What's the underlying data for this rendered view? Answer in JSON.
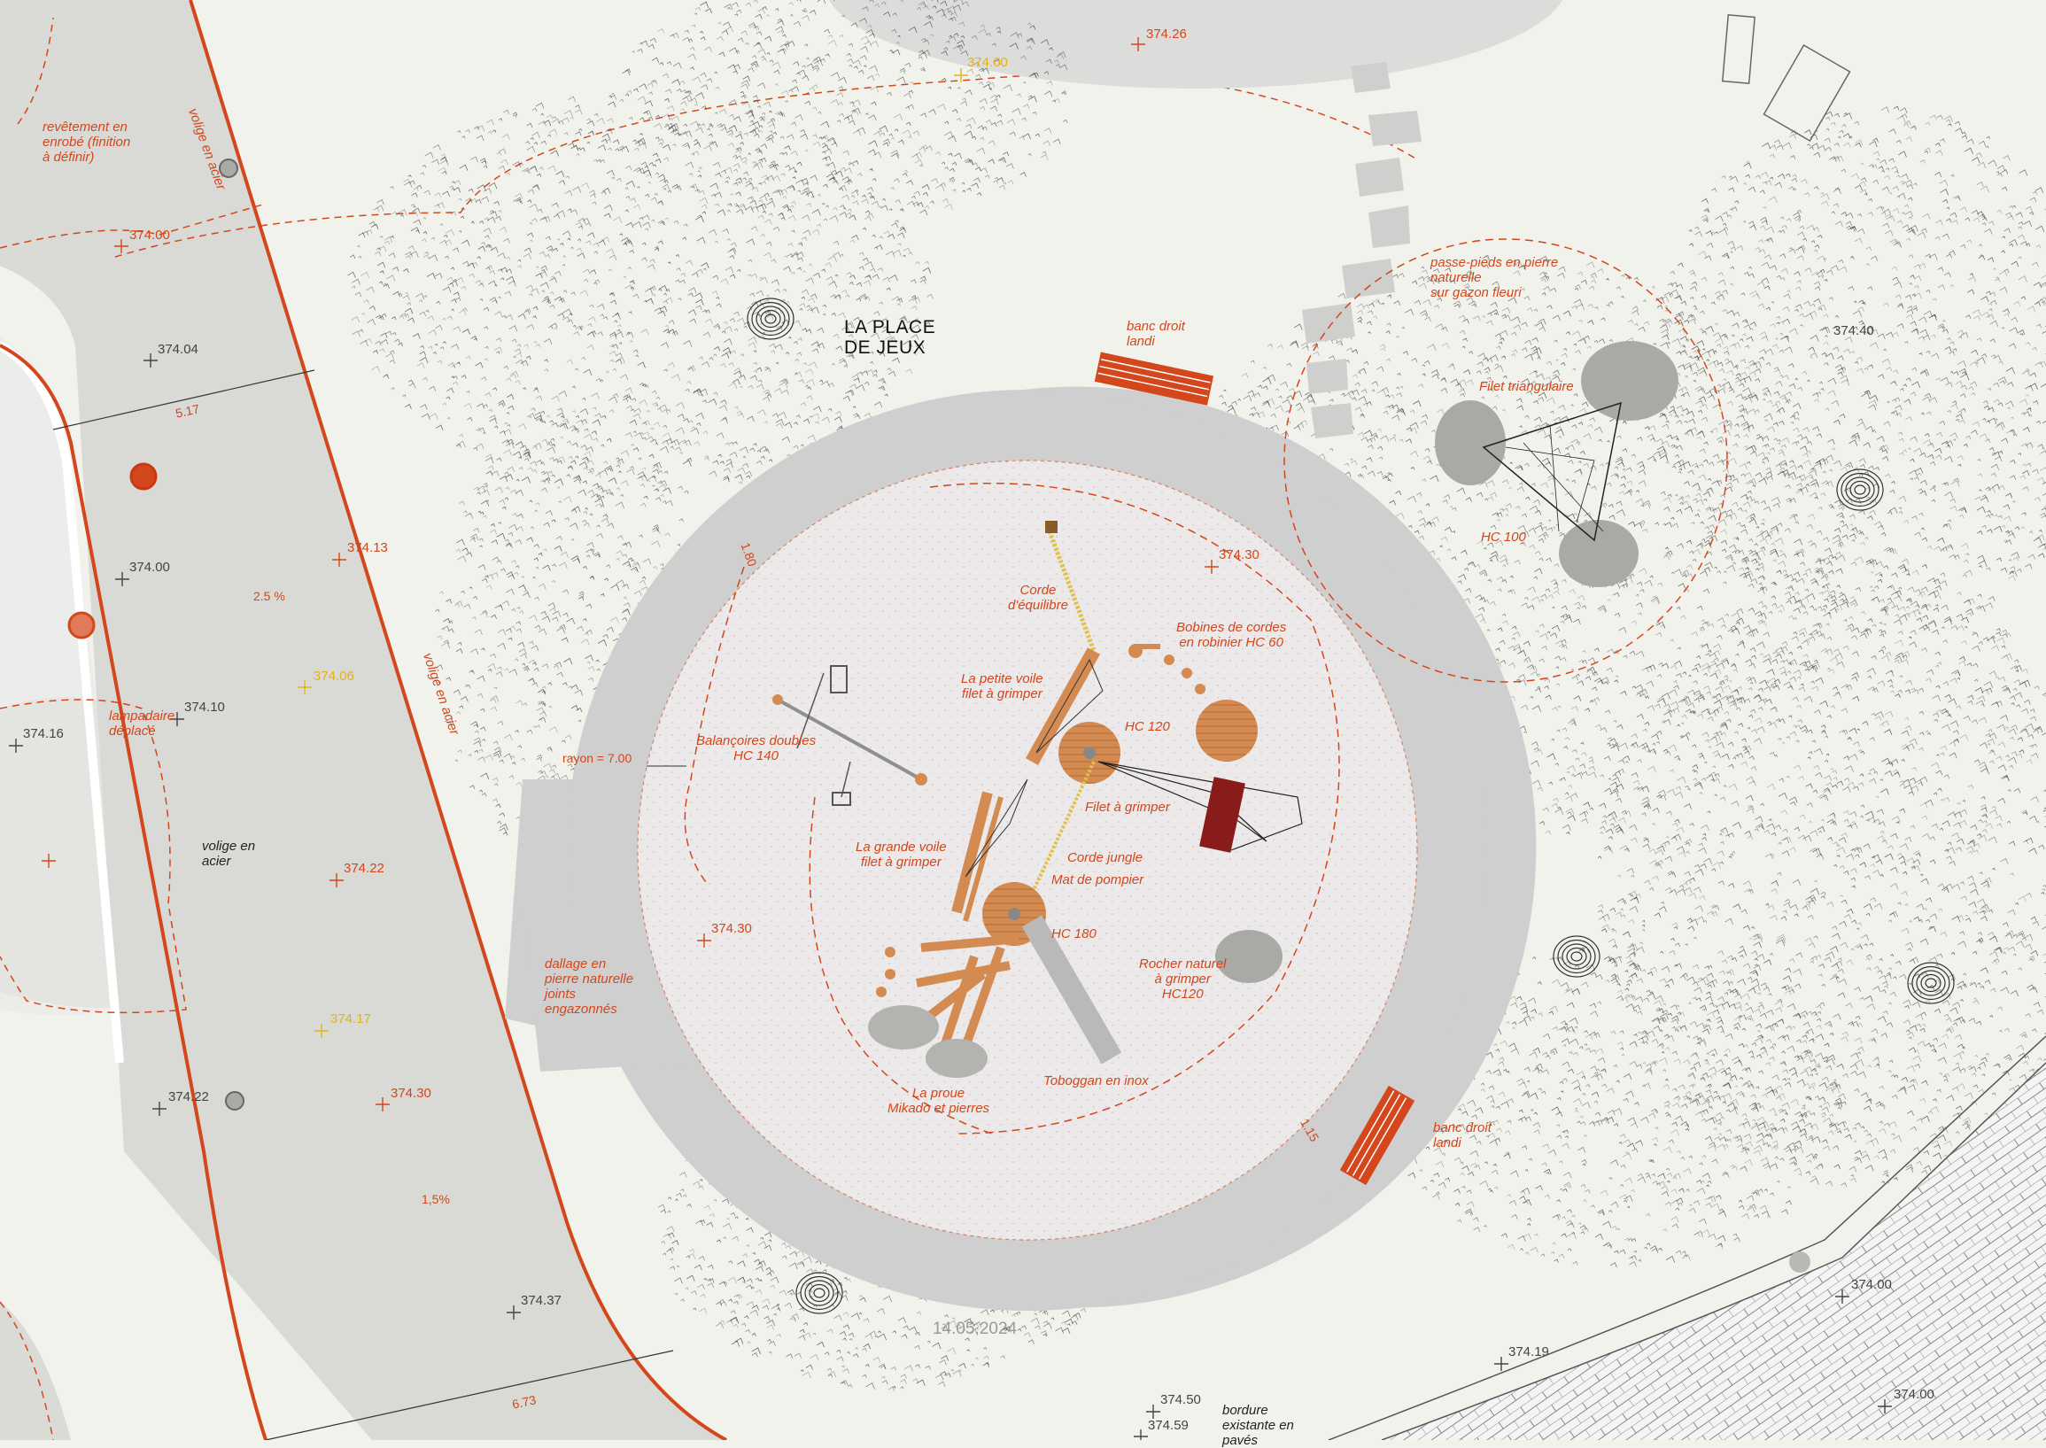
{
  "colors": {
    "ground": "#f2f2ec",
    "path": "#d9d9d6",
    "ring": "#cfcfcf",
    "playground": "#ebe9e9",
    "accent": "#d4461b",
    "wood": "#d48b52",
    "dark_red": "#8a1b1b",
    "stone": "#a9a9a6",
    "text": "#222222",
    "yellow": "#e3b21b"
  },
  "icons": [
    "tree-canopy-icon",
    "tree-trunk-icon",
    "stepping-stone-icon",
    "rock-icon",
    "person-icon",
    "bench-icon",
    "lamp-post-icon",
    "spot-elevation-cross-icon",
    "slope-arrow-icon"
  ],
  "place_title": {
    "line1": "LA PLACE",
    "line2": "DE JEUX"
  },
  "labels": {
    "revetement": {
      "l1": "revêtement en",
      "l2": "enrobé (finition",
      "l3": "à définir)"
    },
    "volige_top": "volige en acier",
    "volige_mid": "volige en acier",
    "volige_black": {
      "l1": "volige en",
      "l2": "acier"
    },
    "lampadaire": {
      "l1": "lampadaire",
      "l2": "déplacé"
    },
    "dallage": {
      "l1": "dallage en",
      "l2": "pierre naturelle",
      "l3": "joints",
      "l4": "engazonnés"
    },
    "banc_top": {
      "l1": "banc droit",
      "l2": "landi"
    },
    "banc_bottom": {
      "l1": "banc droit",
      "l2": "landi"
    },
    "passe_pieds": {
      "l1": "passe-pieds en pierre",
      "l2": "naturelle",
      "l3": "sur gazon fleuri"
    },
    "filet_triangulaire": "Filet triangulaire",
    "hc_100": "HC 100",
    "corde_equilibre": {
      "l1": "Corde",
      "l2": "d'équilibre"
    },
    "bobines": {
      "l1": "Bobines de cordes",
      "l2": "en robinier HC 60"
    },
    "petite_voile": {
      "l1": "La petite voile",
      "l2": "filet à grimper"
    },
    "hc_120": "HC 120",
    "balancoires": {
      "l1": "Balançoires doubles",
      "l2": "HC 140"
    },
    "filet_grimper": "Filet à grimper",
    "grande_voile": {
      "l1": "La grande voile",
      "l2": "filet à grimper"
    },
    "corde_jungle": "Corde jungle",
    "mat_pompier": "Mat de pompier",
    "hc_180": "HC 180",
    "rocher": {
      "l1": "Rocher naturel",
      "l2": "à grimper",
      "l3": "HC120"
    },
    "proue": {
      "l1": "La proue",
      "l2": "Mikado et pierres"
    },
    "toboggan": "Toboggan en inox",
    "bordure": {
      "l1": "bordure",
      "l2": "existante en",
      "l3": "pavés"
    },
    "rayon": "rayon = 7.00",
    "dim_180": "1.80",
    "dim_115": "1.15"
  },
  "dimensions": {
    "d517": "5.17",
    "d673": "6.73"
  },
  "slopes": {
    "s25": "2.5 %",
    "s15": "1,5%"
  },
  "elevations": {
    "e374_26": "374.26",
    "e374_00_y": "374.00",
    "e374_00_a": "374.00",
    "e374_04": "374.04",
    "e374_13": "374.13",
    "e374_00_b": "374.00",
    "e374_06": "374.06",
    "e374_10": "374.10",
    "e374_16": "374.16",
    "e374_22_r": "374.22",
    "e374_30_a": "374.30",
    "e374_30_b": "374.30",
    "e374_17": "374.17",
    "e374_22": "374.22",
    "e374_30_c": "374.30",
    "e374_37": "374.37",
    "e374_50": "374.50",
    "e374_59": "374.59",
    "e374_19": "374.19",
    "e374_00_c": "374.00",
    "e374_00_d": "374.00",
    "e374_40": "374.40"
  },
  "date": "14.05.2024"
}
